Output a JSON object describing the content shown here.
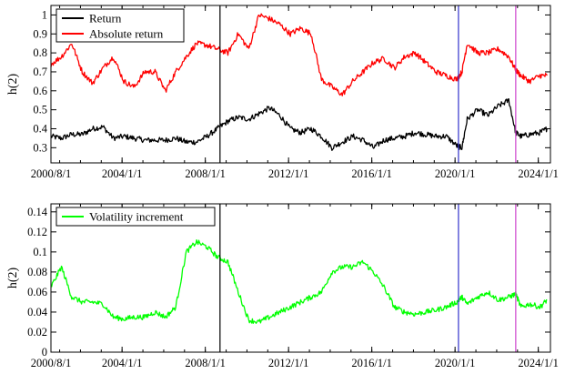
{
  "chart_data": [
    {
      "type": "line",
      "ylabel": "h(2)",
      "xlabel": "",
      "xlim": [
        "2000/8/1",
        "2024/8/1"
      ],
      "ylim": [
        0.22,
        1.05
      ],
      "x_ticks": [
        "2000/8/1",
        "2004/1/1",
        "2008/1/1",
        "2012/1/1",
        "2016/1/1",
        "2020/1/1",
        "2024/1/1"
      ],
      "y_ticks": [
        "0.3",
        "0.4",
        "0.5",
        "0.6",
        "0.7",
        "0.8",
        "0.9",
        "1"
      ],
      "y_tick_values": [
        0.3,
        0.4,
        0.5,
        0.6,
        0.7,
        0.8,
        0.9,
        1.0
      ],
      "legend_position": "top-left",
      "vertical_lines": [
        {
          "x": "2008/9/15",
          "color": "#000000"
        },
        {
          "x": "2020/3/1",
          "color": "#3333cc"
        },
        {
          "x": "2022/12/1",
          "color": "#cc44cc"
        }
      ],
      "series": [
        {
          "name": "Return",
          "color": "#000000",
          "x": [
            "2000/8/1",
            "2001/2/1",
            "2001/8/1",
            "2002/2/1",
            "2002/8/1",
            "2003/2/1",
            "2003/8/1",
            "2004/2/1",
            "2004/8/1",
            "2005/2/1",
            "2005/8/1",
            "2006/2/1",
            "2006/8/1",
            "2007/2/1",
            "2007/8/1",
            "2008/2/1",
            "2008/8/1",
            "2009/2/1",
            "2009/8/1",
            "2010/2/1",
            "2010/8/1",
            "2011/2/1",
            "2011/8/1",
            "2012/2/1",
            "2012/8/1",
            "2013/2/1",
            "2013/8/1",
            "2014/2/1",
            "2014/8/1",
            "2015/2/1",
            "2015/8/1",
            "2016/2/1",
            "2016/8/1",
            "2017/2/1",
            "2017/8/1",
            "2018/2/1",
            "2018/8/1",
            "2019/2/1",
            "2019/8/1",
            "2020/2/1",
            "2020/5/1",
            "2020/8/1",
            "2021/2/1",
            "2021/8/1",
            "2022/2/1",
            "2022/8/1",
            "2022/12/1",
            "2023/3/1",
            "2023/8/1",
            "2024/2/1",
            "2024/6/1"
          ],
          "values": [
            0.36,
            0.35,
            0.37,
            0.37,
            0.4,
            0.41,
            0.35,
            0.36,
            0.35,
            0.34,
            0.34,
            0.34,
            0.35,
            0.33,
            0.33,
            0.36,
            0.4,
            0.44,
            0.46,
            0.45,
            0.48,
            0.51,
            0.47,
            0.4,
            0.38,
            0.4,
            0.36,
            0.3,
            0.33,
            0.36,
            0.34,
            0.3,
            0.34,
            0.35,
            0.36,
            0.38,
            0.37,
            0.36,
            0.36,
            0.31,
            0.3,
            0.45,
            0.5,
            0.47,
            0.52,
            0.55,
            0.38,
            0.36,
            0.37,
            0.38,
            0.4
          ]
        },
        {
          "name": "Absolute return",
          "color": "#ff0000",
          "x": [
            "2000/8/1",
            "2001/2/1",
            "2001/8/1",
            "2002/2/1",
            "2002/8/1",
            "2003/2/1",
            "2003/8/1",
            "2004/2/1",
            "2004/8/1",
            "2005/2/1",
            "2005/8/1",
            "2006/2/1",
            "2006/8/1",
            "2007/2/1",
            "2007/8/1",
            "2008/2/1",
            "2008/8/1",
            "2009/2/1",
            "2009/8/1",
            "2010/2/1",
            "2010/8/1",
            "2011/2/1",
            "2011/8/1",
            "2012/2/1",
            "2012/8/1",
            "2013/2/1",
            "2013/8/1",
            "2014/2/1",
            "2014/8/1",
            "2015/2/1",
            "2015/8/1",
            "2016/2/1",
            "2016/8/1",
            "2017/2/1",
            "2017/8/1",
            "2018/2/1",
            "2018/8/1",
            "2019/2/1",
            "2019/8/1",
            "2020/2/1",
            "2020/5/1",
            "2020/8/1",
            "2021/2/1",
            "2021/8/1",
            "2022/2/1",
            "2022/8/1",
            "2022/12/1",
            "2023/3/1",
            "2023/8/1",
            "2024/2/1",
            "2024/6/1"
          ],
          "values": [
            0.74,
            0.78,
            0.85,
            0.7,
            0.64,
            0.72,
            0.78,
            0.65,
            0.62,
            0.7,
            0.7,
            0.6,
            0.7,
            0.78,
            0.85,
            0.84,
            0.82,
            0.8,
            0.9,
            0.82,
            1.0,
            0.98,
            0.95,
            0.9,
            0.93,
            0.9,
            0.66,
            0.62,
            0.58,
            0.65,
            0.7,
            0.75,
            0.77,
            0.72,
            0.78,
            0.8,
            0.75,
            0.7,
            0.68,
            0.66,
            0.7,
            0.85,
            0.8,
            0.8,
            0.82,
            0.78,
            0.71,
            0.68,
            0.65,
            0.68,
            0.68
          ]
        }
      ]
    },
    {
      "type": "line",
      "ylabel": "h(2)",
      "xlabel": "",
      "xlim": [
        "2000/8/1",
        "2024/8/1"
      ],
      "ylim": [
        0.0,
        0.148
      ],
      "x_ticks": [
        "2000/8/1",
        "2004/1/1",
        "2008/1/1",
        "2012/1/1",
        "2016/1/1",
        "2020/1/1",
        "2024/1/1"
      ],
      "y_ticks": [
        "0",
        "0.02",
        "0.04",
        "0.06",
        "0.08",
        "0.1",
        "0.12",
        "0.14"
      ],
      "y_tick_values": [
        0,
        0.02,
        0.04,
        0.06,
        0.08,
        0.1,
        0.12,
        0.14
      ],
      "legend_position": "top-left",
      "vertical_lines": [
        {
          "x": "2008/9/15",
          "color": "#000000"
        },
        {
          "x": "2020/3/1",
          "color": "#3333cc"
        },
        {
          "x": "2022/12/1",
          "color": "#cc44cc"
        }
      ],
      "series": [
        {
          "name": "Volatility increment",
          "color": "#00ff00",
          "x": [
            "2000/8/1",
            "2001/2/1",
            "2001/8/1",
            "2002/2/1",
            "2002/8/1",
            "2003/2/1",
            "2003/8/1",
            "2004/2/1",
            "2004/8/1",
            "2005/2/1",
            "2005/8/1",
            "2006/2/1",
            "2006/8/1",
            "2007/2/1",
            "2007/8/1",
            "2008/2/1",
            "2008/8/1",
            "2009/2/1",
            "2009/8/1",
            "2010/2/1",
            "2010/8/1",
            "2011/2/1",
            "2011/8/1",
            "2012/2/1",
            "2012/8/1",
            "2013/2/1",
            "2013/8/1",
            "2014/2/1",
            "2014/8/1",
            "2015/2/1",
            "2015/8/1",
            "2016/2/1",
            "2016/8/1",
            "2017/2/1",
            "2017/8/1",
            "2018/2/1",
            "2018/8/1",
            "2019/2/1",
            "2019/8/1",
            "2020/2/1",
            "2020/5/1",
            "2020/8/1",
            "2021/2/1",
            "2021/8/1",
            "2022/2/1",
            "2022/8/1",
            "2022/12/1",
            "2023/3/1",
            "2023/8/1",
            "2024/2/1",
            "2024/6/1"
          ],
          "values": [
            0.065,
            0.085,
            0.055,
            0.05,
            0.05,
            0.048,
            0.035,
            0.033,
            0.035,
            0.035,
            0.04,
            0.035,
            0.045,
            0.1,
            0.11,
            0.105,
            0.095,
            0.09,
            0.06,
            0.032,
            0.03,
            0.035,
            0.04,
            0.045,
            0.05,
            0.055,
            0.06,
            0.08,
            0.085,
            0.085,
            0.09,
            0.08,
            0.065,
            0.045,
            0.04,
            0.038,
            0.04,
            0.042,
            0.045,
            0.05,
            0.055,
            0.048,
            0.055,
            0.06,
            0.052,
            0.055,
            0.058,
            0.045,
            0.048,
            0.045,
            0.052
          ]
        }
      ]
    }
  ]
}
